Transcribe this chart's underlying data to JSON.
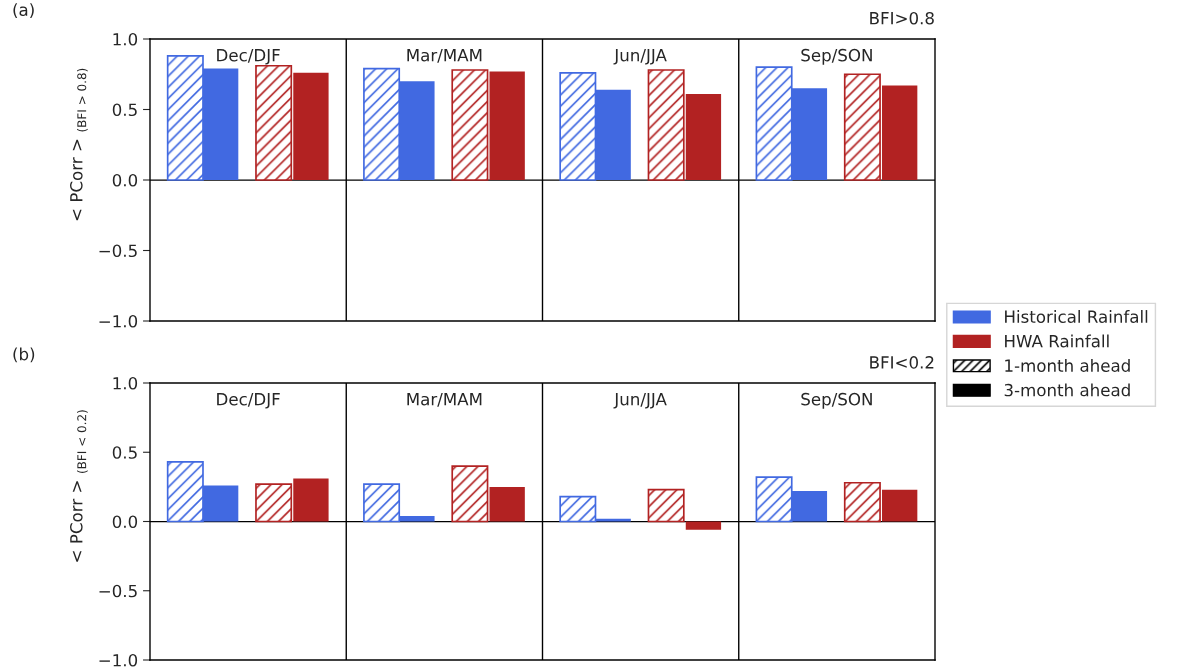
{
  "chart_data": [
    {
      "type": "bar",
      "ylabel": "< PCorr >$_{(BFI > 0.8)}$",
      "annotations": [
        "(a)",
        "BFI>0.8",
        "1-month ahead",
        "3-month ahead"
      ],
      "categories": [
        "Dec/DJF",
        "Mar/MAM",
        "Jun/JJA",
        "Sep/SON"
      ],
      "ylim": [
        -1.0,
        1.0
      ],
      "yticks": [
        {
          "value": -1.0,
          "label": "−1.0"
        },
        {
          "value": -0.5,
          "label": "−0.5"
        },
        {
          "value": 0,
          "label": "0.0"
        },
        0.5,
        {
          "value": 1,
          "label": "1.0"
        }
      ],
      "ref_lines": [
        {
          "axis": "y",
          "value": 0
        }
      ],
      "legend": "right",
      "series": [
        {
          "color": "#4169e1",
          "values": [
            0.88,
            0.79,
            0.76,
            0.8
          ]
        },
        {
          "name": "Historical Rainfall",
          "color": "#4169e1",
          "values": [
            0.79,
            0.7,
            0.64,
            0.65
          ]
        },
        {
          "color": "#b22222",
          "values": [
            0.81,
            0.78,
            0.78,
            0.75
          ]
        },
        {
          "name": "HWA Rainfall",
          "color": "#b22222",
          "values": [
            0.76,
            0.77,
            0.61,
            0.67
          ]
        }
      ]
    },
    {
      "type": "bar",
      "ylabel": "< PCorr >$_{(BFI < 0.2)}$",
      "annotations": [
        "(b)",
        "BFI<0.2"
      ],
      "categories": [
        "Dec/DJF",
        "Mar/MAM",
        "Jun/JJA",
        "Sep/SON"
      ],
      "ylim": [
        -1.0,
        1.0
      ],
      "yticks": [
        {
          "value": -1.0,
          "label": "−1.0"
        },
        {
          "value": -0.5,
          "label": "−0.5"
        },
        {
          "value": 0,
          "label": "0.0"
        },
        0.5,
        {
          "value": 1,
          "label": "1.0"
        }
      ],
      "ref_lines": [
        {
          "axis": "y",
          "value": 0
        }
      ],
      "series": [
        {
          "color": "#4169e1",
          "values": [
            0.43,
            0.27,
            0.18,
            0.32
          ]
        },
        {
          "color": "#4169e1",
          "values": [
            0.26,
            0.04,
            0.02,
            0.22
          ]
        },
        {
          "color": "#b22222",
          "values": [
            0.27,
            0.4,
            0.23,
            0.28
          ]
        },
        {
          "color": "#b22222",
          "values": [
            0.31,
            0.25,
            -0.06,
            0.23
          ]
        }
      ]
    }
  ]
}
